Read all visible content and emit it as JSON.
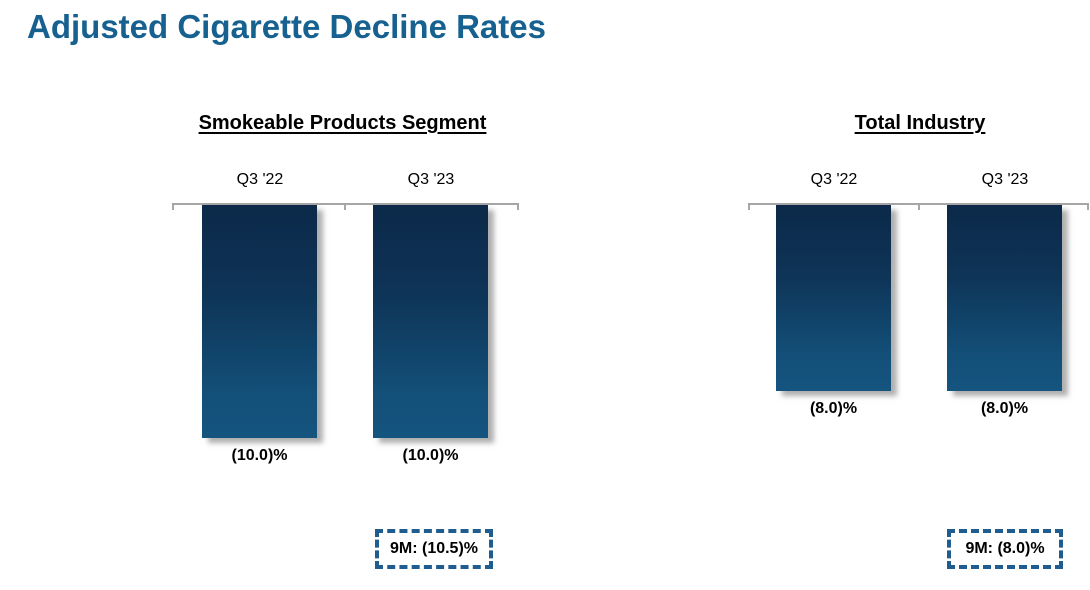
{
  "slide": {
    "title": "Adjusted Cigarette Decline Rates"
  },
  "colors": {
    "title_blue": "#16618F",
    "bar_gradient_top": "#0C2949",
    "bar_gradient_bottom": "#15547F",
    "annotation_dash_blue": "#1F5C8F",
    "axis_gray": "#A6A6A6",
    "text_black": "#000000"
  },
  "chart_data": [
    {
      "type": "bar",
      "title": "Smokeable Products Segment",
      "categories": [
        "Q3 '22",
        "Q3 '23"
      ],
      "values": [
        -10.0,
        -10.0
      ],
      "value_labels": [
        "(10.0)%",
        "(10.0)%"
      ],
      "xlabel": "",
      "ylabel": "",
      "ylim": [
        -12,
        0
      ],
      "grid": false,
      "legend": false,
      "bar_direction": "down-from-zero-line",
      "annotation": "9M: (10.5)%"
    },
    {
      "type": "bar",
      "title": "Total Industry",
      "categories": [
        "Q3 '22",
        "Q3 '23"
      ],
      "values": [
        -8.0,
        -8.0
      ],
      "value_labels": [
        "(8.0)%",
        "(8.0)%"
      ],
      "xlabel": "",
      "ylabel": "",
      "ylim": [
        -12,
        0
      ],
      "grid": false,
      "legend": false,
      "bar_direction": "down-from-zero-line",
      "annotation": "9M: (8.0)%"
    }
  ]
}
